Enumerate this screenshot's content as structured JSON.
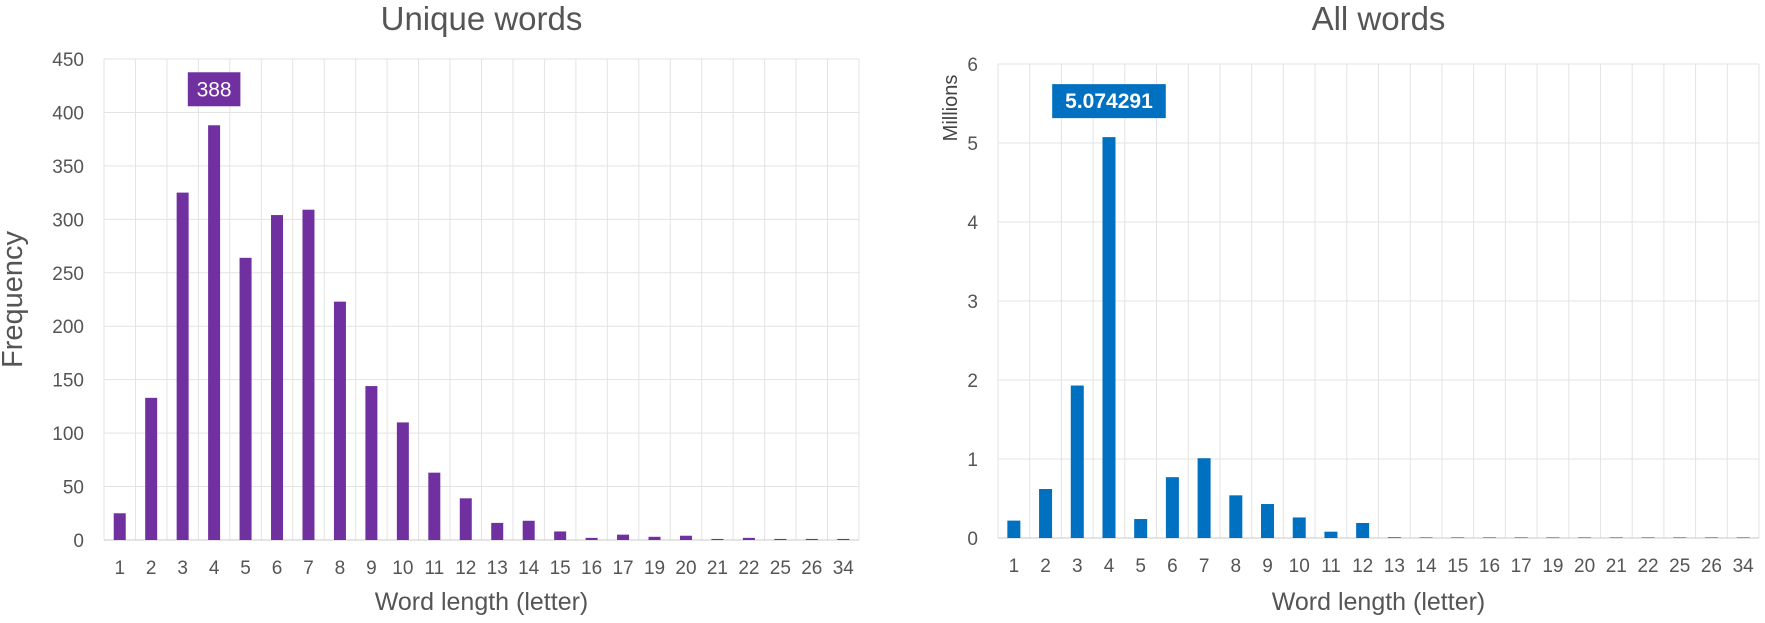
{
  "chart_data": [
    {
      "type": "bar",
      "title": "Unique words",
      "xlabel": "Word length (letter)",
      "ylabel": "Frequency",
      "categories": [
        "1",
        "2",
        "3",
        "4",
        "5",
        "6",
        "7",
        "8",
        "9",
        "10",
        "11",
        "12",
        "13",
        "14",
        "15",
        "16",
        "17",
        "19",
        "20",
        "21",
        "22",
        "25",
        "26",
        "34"
      ],
      "values": [
        25,
        133,
        325,
        388,
        264,
        304,
        309,
        223,
        144,
        110,
        63,
        39,
        16,
        18,
        8,
        2,
        5,
        3,
        4,
        1,
        2,
        1,
        1,
        1
      ],
      "ylim": [
        0,
        450
      ],
      "yticks": [
        "0",
        "50",
        "100",
        "150",
        "200",
        "250",
        "300",
        "350",
        "400",
        "450"
      ],
      "bar_color": "#7030a0",
      "callout": {
        "category": "4",
        "text": "388",
        "color": "#7030a0"
      },
      "grid": true
    },
    {
      "type": "bar",
      "title": "All words",
      "xlabel": "Word length (letter)",
      "ylabel": "",
      "unit_label": "Millions",
      "categories": [
        "1",
        "2",
        "3",
        "4",
        "5",
        "6",
        "7",
        "8",
        "9",
        "10",
        "11",
        "12",
        "13",
        "14",
        "15",
        "16",
        "17",
        "19",
        "20",
        "21",
        "22",
        "25",
        "26",
        "34"
      ],
      "values": [
        0.22,
        0.62,
        1.93,
        5.074291,
        0.24,
        0.77,
        1.01,
        0.54,
        0.43,
        0.26,
        0.08,
        0.19,
        0.01,
        0.005,
        0.003,
        0.002,
        0.001,
        0.001,
        0.001,
        0.0005,
        0.0005,
        0.0002,
        0.0002,
        0.0002
      ],
      "ylim": [
        0,
        6
      ],
      "yticks": [
        "0",
        "1",
        "2",
        "3",
        "4",
        "5",
        "6"
      ],
      "bar_color": "#0070c0",
      "callout": {
        "category": "4",
        "text": "5.074291",
        "color": "#0070c0"
      },
      "grid": true
    }
  ]
}
